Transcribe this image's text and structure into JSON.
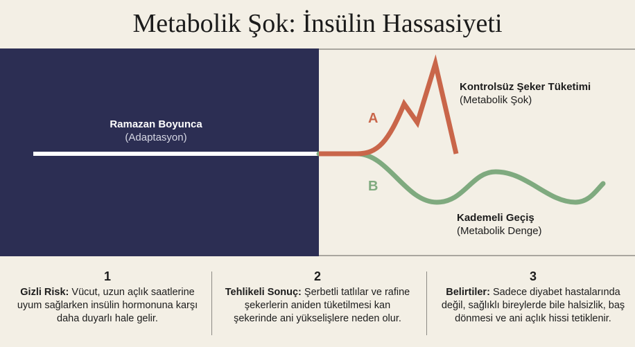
{
  "title": "Metabolik Şok: İnsülin Hassasiyeti",
  "left": {
    "title": "Ramazan Boyunca",
    "subtitle": "(Adaptasyon)"
  },
  "path_a": {
    "letter": "A",
    "title": "Kontrolsüz Şeker Tüketimi",
    "subtitle": "(Metabolik Şok)",
    "color": "#c9664a"
  },
  "path_b": {
    "letter": "B",
    "title": "Kademeli Geçiş",
    "subtitle": "(Metabolik Denge)",
    "color": "#7faa7f"
  },
  "colors": {
    "panel": "#2c2e53",
    "background": "#f3efe5"
  },
  "points": [
    {
      "number": "1",
      "lead": "Gizli Risk:",
      "text": " Vücut, uzun açlık saatlerine uyum sağlarken insülin hormonuna karşı daha duyarlı hale gelir."
    },
    {
      "number": "2",
      "lead": "Tehlikeli Sonuç:",
      "text": " Şerbetli tatlılar ve rafine şekerlerin aniden tüketilmesi kan şekerinde ani yükselişlere neden olur."
    },
    {
      "number": "3",
      "lead": "Belirtiler:",
      "text": " Sadece diyabet hastalarında değil, sağlıklı bireylerde bile halsizlik, baş dönmesi ve ani açlık hissi tetiklenir."
    }
  ]
}
